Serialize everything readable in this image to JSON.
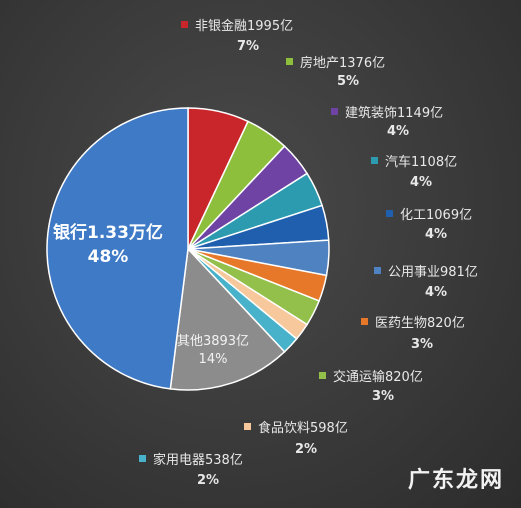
{
  "chart_data": {
    "type": "pie",
    "slices": [
      {
        "name": "非银金融1995亿",
        "pct": "7%",
        "value": 7,
        "color": "#c8262a"
      },
      {
        "name": "房地产1376亿",
        "pct": "5%",
        "value": 5,
        "color": "#8dbf3c"
      },
      {
        "name": "建筑装饰1149亿",
        "pct": "4%",
        "value": 4,
        "color": "#6f43a4"
      },
      {
        "name": "汽车1108亿",
        "pct": "4%",
        "value": 4,
        "color": "#2c9bb0"
      },
      {
        "name": "化工1069亿",
        "pct": "4%",
        "value": 4,
        "color": "#1f5fae"
      },
      {
        "name": "公用事业981亿",
        "pct": "4%",
        "value": 4,
        "color": "#4e82c0"
      },
      {
        "name": "医药生物820亿",
        "pct": "3%",
        "value": 3,
        "color": "#e7782a"
      },
      {
        "name": "交通运输820亿",
        "pct": "3%",
        "value": 3,
        "color": "#93c04a"
      },
      {
        "name": "食品饮料598亿",
        "pct": "2%",
        "value": 2,
        "color": "#f6c89b"
      },
      {
        "name": "家用电器538亿",
        "pct": "2%",
        "value": 2,
        "color": "#47b2c9"
      },
      {
        "name": "其他3893亿",
        "pct": "14%",
        "value": 14,
        "color": "#8c8c8c"
      },
      {
        "name": "银行1.33万亿",
        "pct": "48%",
        "value": 48,
        "color": "#3f7ac6"
      }
    ]
  },
  "watermark": "广东龙网"
}
